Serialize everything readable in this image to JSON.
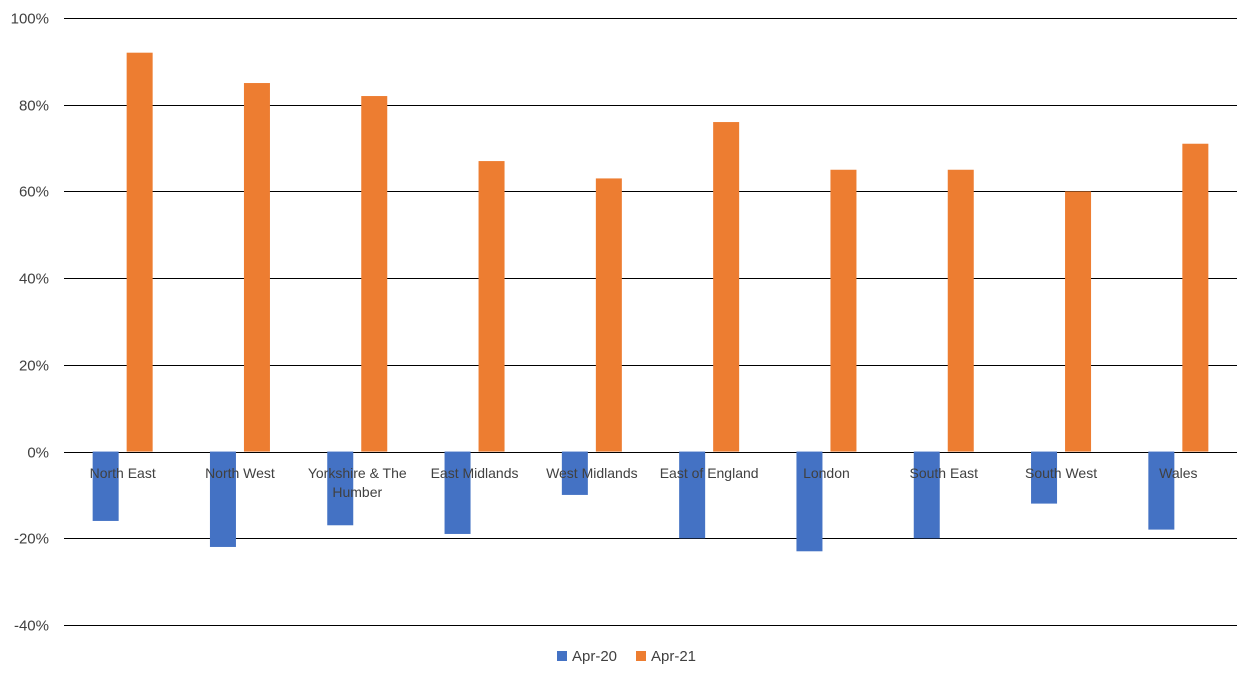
{
  "chart_data": {
    "type": "bar",
    "categories": [
      "North East",
      "North West",
      "Yorkshire & The Humber",
      "East Midlands",
      "West Midlands",
      "East of England",
      "London",
      "South East",
      "South West",
      "Wales"
    ],
    "series": [
      {
        "name": "Apr-20",
        "color": "#4472C4",
        "values": [
          -16,
          -22,
          -17,
          -19,
          -10,
          -20,
          -23,
          -20,
          -12,
          -18
        ]
      },
      {
        "name": "Apr-21",
        "color": "#ED7D31",
        "values": [
          92,
          85,
          82,
          67,
          63,
          76,
          65,
          65,
          60,
          71
        ]
      }
    ],
    "ylim": [
      -40,
      100
    ],
    "yticks": [
      100,
      80,
      60,
      40,
      20,
      0,
      -20,
      -40
    ],
    "ytick_labels": [
      "100%",
      "80%",
      "60%",
      "40%",
      "20%",
      "0%",
      "-20%",
      "-40%"
    ],
    "grid": true,
    "legend_position": "bottom"
  }
}
